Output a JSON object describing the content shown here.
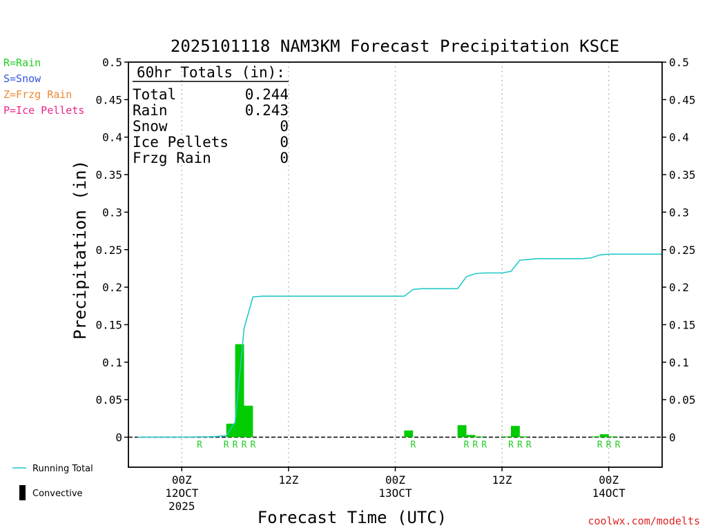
{
  "chart_data": {
    "type": "bar",
    "title": "2025101118 NAM3KM Forecast Precipitation KSCE",
    "xlabel": "Forecast Time (UTC)",
    "ylabel": "Precipitation (in)",
    "ylim": [
      -0.04,
      0.5
    ],
    "xlim": [
      -6,
      54
    ],
    "y_ticks": [
      0,
      0.05,
      0.1,
      0.15,
      0.2,
      0.25,
      0.3,
      0.35,
      0.4,
      0.45,
      0.5
    ],
    "y_tick_labels": [
      "0",
      "0.05",
      "0.1",
      "0.15",
      "0.2",
      "0.25",
      "0.3",
      "0.35",
      "0.4",
      "0.45",
      "0.5"
    ],
    "x_ticks": [
      {
        "hour": 0,
        "label": "00Z",
        "sub": "12OCT",
        "sub2": "2025"
      },
      {
        "hour": 12,
        "label": "12Z",
        "sub": "",
        "sub2": ""
      },
      {
        "hour": 24,
        "label": "00Z",
        "sub": "13OCT",
        "sub2": ""
      },
      {
        "hour": 36,
        "label": "12Z",
        "sub": "",
        "sub2": ""
      },
      {
        "hour": 48,
        "label": "00Z",
        "sub": "14OCT",
        "sub2": ""
      }
    ],
    "grid": "vertical dotted",
    "legend_left": [
      {
        "text": "R=Rain",
        "color": "#22cc22"
      },
      {
        "text": "S=Snow",
        "color": "#3355dd"
      },
      {
        "text": "Z=Frzg Rain",
        "color": "#ee8833"
      },
      {
        "text": "P=Ice Pellets",
        "color": "#ee2288"
      }
    ],
    "legend_bottom": [
      {
        "text": "Running Total",
        "kind": "line",
        "color": "#22c8c8"
      },
      {
        "text": "Convective",
        "kind": "bar",
        "color": "#000000"
      }
    ],
    "totals_box": {
      "heading": "60hr Totals (in):",
      "rows": [
        {
          "label": "Total",
          "value": "0.244"
        },
        {
          "label": "Rain",
          "value": "0.243"
        },
        {
          "label": "Snow",
          "value": "0"
        },
        {
          "label": "Ice Pellets",
          "value": "0"
        },
        {
          "label": "Frzg Rain",
          "value": "0"
        }
      ]
    },
    "series": [
      {
        "name": "Rain",
        "type": "bar",
        "color": "#00cc00",
        "points": [
          {
            "hour": 5.5,
            "value": 0.018
          },
          {
            "hour": 6.5,
            "value": 0.124
          },
          {
            "hour": 7.5,
            "value": 0.042
          },
          {
            "hour": 25.5,
            "value": 0.009
          },
          {
            "hour": 31.5,
            "value": 0.016
          },
          {
            "hour": 32.5,
            "value": 0.003
          },
          {
            "hour": 33.5,
            "value": 0.001
          },
          {
            "hour": 36.5,
            "value": 0.001
          },
          {
            "hour": 37.5,
            "value": 0.015
          },
          {
            "hour": 38.5,
            "value": 0.001
          },
          {
            "hour": 46.5,
            "value": 0.001
          },
          {
            "hour": 47.5,
            "value": 0.004
          },
          {
            "hour": 48.5,
            "value": 0.001
          }
        ]
      },
      {
        "name": "Running Total",
        "type": "line",
        "color": "#22c8c8",
        "x": [
          -5,
          0,
          2,
          3,
          4,
          5,
          6,
          7,
          8,
          9,
          10,
          11,
          12,
          16,
          20,
          24,
          25,
          26,
          27,
          28,
          29,
          30,
          31,
          32,
          33,
          34,
          35,
          36,
          37,
          38,
          39,
          40,
          41,
          42,
          43,
          44,
          45,
          46,
          47,
          48,
          49,
          50,
          51,
          52,
          53,
          54
        ],
        "y": [
          0,
          0,
          0.0005,
          0.0005,
          0.001,
          0.002,
          0.02,
          0.145,
          0.187,
          0.188,
          0.188,
          0.188,
          0.188,
          0.188,
          0.188,
          0.188,
          0.188,
          0.197,
          0.198,
          0.198,
          0.198,
          0.198,
          0.198,
          0.214,
          0.218,
          0.219,
          0.219,
          0.219,
          0.221,
          0.236,
          0.237,
          0.238,
          0.238,
          0.238,
          0.238,
          0.238,
          0.238,
          0.239,
          0.243,
          0.244,
          0.244,
          0.244,
          0.244,
          0.244,
          0.244,
          0.244
        ]
      }
    ],
    "type_markers": [
      {
        "hour": 2,
        "label": "R"
      },
      {
        "hour": 5,
        "label": "R"
      },
      {
        "hour": 6,
        "label": "R"
      },
      {
        "hour": 7,
        "label": "R"
      },
      {
        "hour": 8,
        "label": "R"
      },
      {
        "hour": 26,
        "label": "R"
      },
      {
        "hour": 32,
        "label": "R"
      },
      {
        "hour": 33,
        "label": "R"
      },
      {
        "hour": 34,
        "label": "R"
      },
      {
        "hour": 37,
        "label": "R"
      },
      {
        "hour": 38,
        "label": "R"
      },
      {
        "hour": 39,
        "label": "R"
      },
      {
        "hour": 47,
        "label": "R"
      },
      {
        "hour": 48,
        "label": "R"
      },
      {
        "hour": 49,
        "label": "R"
      }
    ],
    "watermark": "coolwx.com/modelts"
  }
}
